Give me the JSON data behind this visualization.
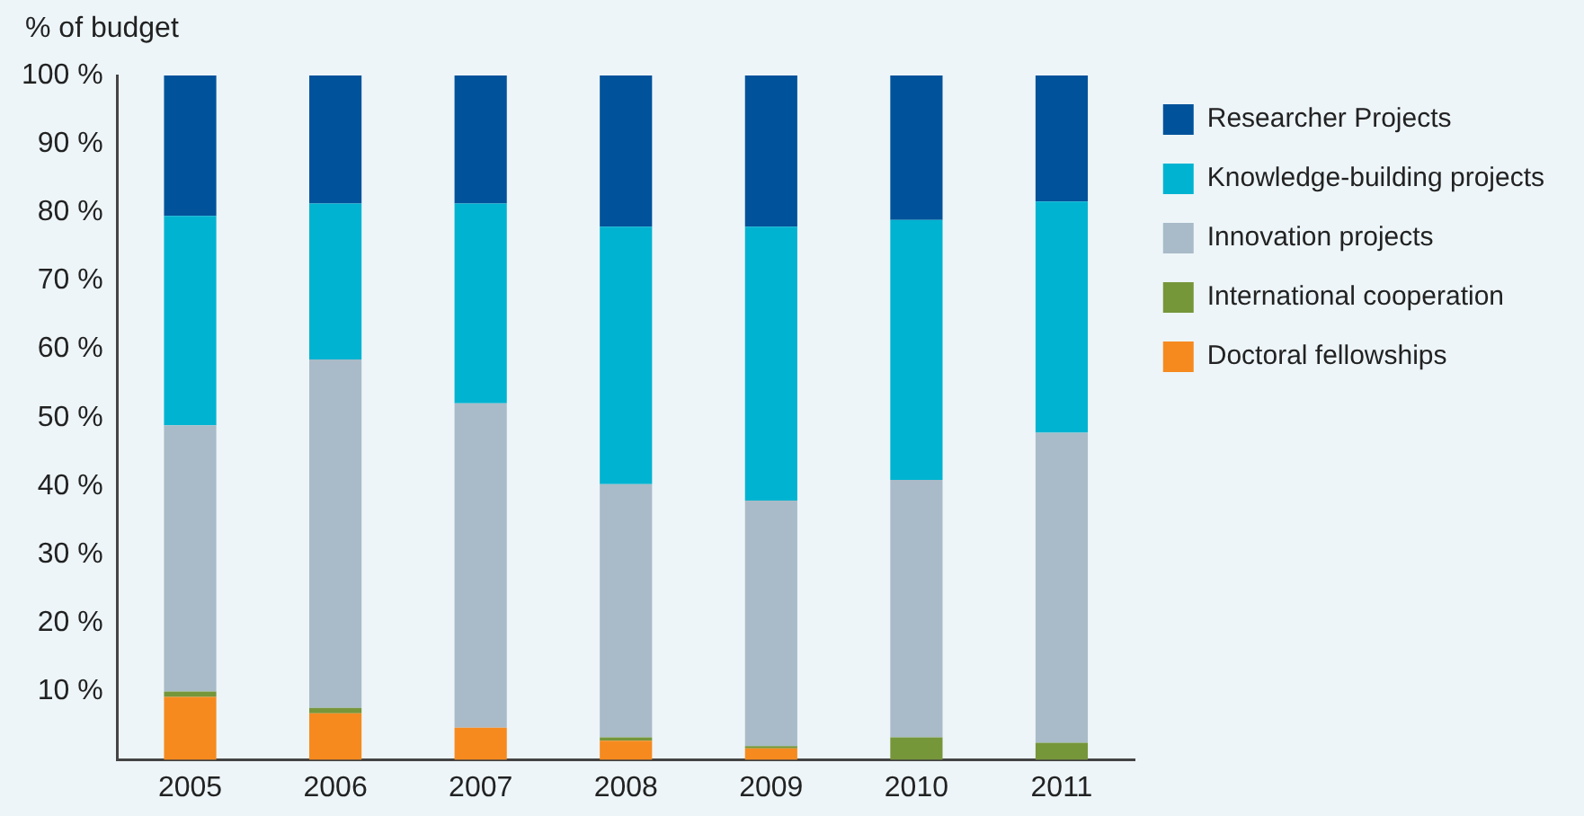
{
  "chart_data": {
    "type": "bar",
    "ylabel": "% of budget",
    "stacked": true,
    "categories": [
      "2005",
      "2006",
      "2007",
      "2008",
      "2009",
      "2010",
      "2011"
    ],
    "series": [
      {
        "name": "Doctoral fellowships",
        "color": "#f68a1f",
        "values": [
          9.2,
          6.8,
          4.7,
          2.8,
          1.7,
          0,
          0
        ]
      },
      {
        "name": "International cooperation",
        "color": "#76963a",
        "values": [
          0.8,
          0.8,
          0,
          0.5,
          0.3,
          3.3,
          2.5
        ]
      },
      {
        "name": "Innovation projects",
        "color": "#a9bbc8",
        "values": [
          38.9,
          50.9,
          47.4,
          37,
          35.9,
          37.6,
          45.3
        ]
      },
      {
        "name": "Knowledge-building projects",
        "color": "#00b3d1",
        "values": [
          30.6,
          22.8,
          29.2,
          37.6,
          40,
          38,
          33.8
        ]
      },
      {
        "name": "Researcher Projects",
        "color": "#00529b",
        "values": [
          20.5,
          18.7,
          18.7,
          22.1,
          22.1,
          21.1,
          18.4
        ]
      }
    ],
    "ylim": [
      0,
      100
    ],
    "yticks": [
      {
        "value": 10,
        "label": "10 %"
      },
      {
        "value": 20,
        "label": "20 %"
      },
      {
        "value": 30,
        "label": "30 %"
      },
      {
        "value": 40,
        "label": "40 %"
      },
      {
        "value": 50,
        "label": "50 %"
      },
      {
        "value": 60,
        "label": "60 %"
      },
      {
        "value": 70,
        "label": "70 %"
      },
      {
        "value": 80,
        "label": "80 %"
      },
      {
        "value": 90,
        "label": "90 %"
      },
      {
        "value": 100,
        "label": "100 %"
      }
    ],
    "grid": false,
    "legend": "top right"
  }
}
